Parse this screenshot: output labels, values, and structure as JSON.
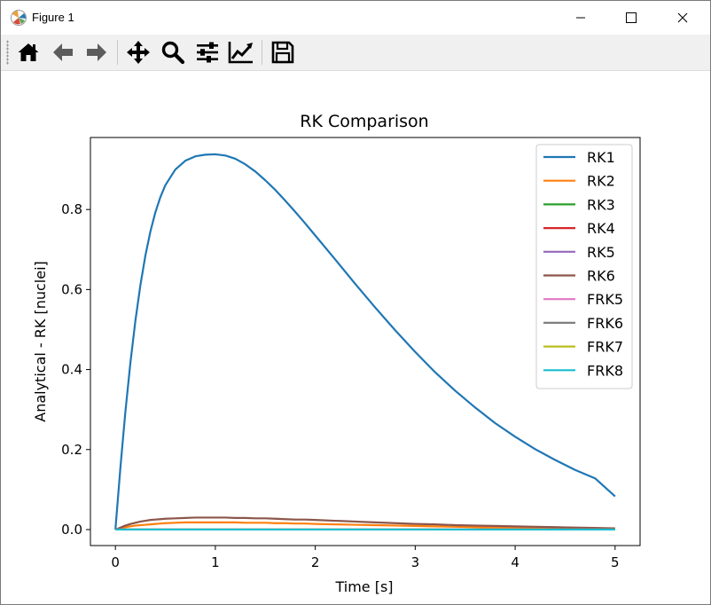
{
  "window": {
    "title": "Figure 1",
    "icons": [
      "matplotlib-icon",
      "minimize-icon",
      "maximize-icon",
      "close-icon"
    ]
  },
  "toolbar": {
    "tools": [
      "home-icon",
      "back-icon",
      "forward-icon",
      "pan-icon",
      "zoom-icon",
      "configure-subplots-icon",
      "edit-axis-icon",
      "save-icon"
    ]
  },
  "chart_data": {
    "type": "line",
    "title": "RK Comparison",
    "xlabel": "Time [s]",
    "ylabel": "Analytical - RK [nuclei]",
    "xlim": [
      -0.25,
      5.25
    ],
    "ylim": [
      -0.04,
      0.98
    ],
    "xticks": [
      0,
      1,
      2,
      3,
      4,
      5
    ],
    "xtick_labels": [
      "0",
      "1",
      "2",
      "3",
      "4",
      "5"
    ],
    "yticks": [
      0.0,
      0.2,
      0.4,
      0.6,
      0.8
    ],
    "ytick_labels": [
      "0.0",
      "0.2",
      "0.4",
      "0.6",
      "0.8"
    ],
    "grid": false,
    "legend_position": "top-right",
    "x": [
      0,
      0.05,
      0.1,
      0.15,
      0.2,
      0.25,
      0.3,
      0.35,
      0.4,
      0.45,
      0.5,
      0.6,
      0.7,
      0.8,
      0.9,
      1.0,
      1.1,
      1.2,
      1.3,
      1.4,
      1.5,
      1.6,
      1.7,
      1.8,
      1.9,
      2.0,
      2.2,
      2.4,
      2.6,
      2.8,
      3.0,
      3.2,
      3.4,
      3.6,
      3.8,
      4.0,
      4.2,
      4.4,
      4.6,
      4.8,
      5.0
    ],
    "series": [
      {
        "name": "RK1",
        "color": "#1f77b4",
        "values": [
          0.0,
          0.155,
          0.295,
          0.417,
          0.522,
          0.611,
          0.685,
          0.745,
          0.793,
          0.831,
          0.861,
          0.9,
          0.922,
          0.933,
          0.937,
          0.938,
          0.935,
          0.927,
          0.913,
          0.895,
          0.873,
          0.849,
          0.822,
          0.794,
          0.765,
          0.735,
          0.675,
          0.614,
          0.555,
          0.498,
          0.444,
          0.393,
          0.347,
          0.305,
          0.266,
          0.232,
          0.201,
          0.174,
          0.149,
          0.128,
          0.083
        ]
      },
      {
        "name": "RK2",
        "color": "#ff7f0e",
        "values": [
          0.0,
          0.003,
          0.006,
          0.008,
          0.01,
          0.011,
          0.012,
          0.013,
          0.014,
          0.015,
          0.016,
          0.017,
          0.018,
          0.018,
          0.018,
          0.018,
          0.018,
          0.018,
          0.017,
          0.017,
          0.017,
          0.016,
          0.016,
          0.015,
          0.015,
          0.014,
          0.013,
          0.012,
          0.011,
          0.01,
          0.009,
          0.008,
          0.007,
          0.006,
          0.005,
          0.005,
          0.004,
          0.004,
          0.003,
          0.003,
          0.002
        ]
      },
      {
        "name": "RK3",
        "color": "#2ca02c",
        "values": [
          0,
          0,
          0,
          0,
          0,
          0,
          0,
          0,
          0,
          0,
          0,
          0,
          0,
          0,
          0,
          0,
          0,
          0,
          0,
          0,
          0,
          0,
          0,
          0,
          0,
          0,
          0,
          0,
          0,
          0,
          0,
          0,
          0,
          0,
          0,
          0,
          0,
          0,
          0,
          0,
          0
        ]
      },
      {
        "name": "RK4",
        "color": "#d62728",
        "values": [
          0,
          0,
          0,
          0,
          0,
          0,
          0,
          0,
          0,
          0,
          0,
          0,
          0,
          0,
          0,
          0,
          0,
          0,
          0,
          0,
          0,
          0,
          0,
          0,
          0,
          0,
          0,
          0,
          0,
          0,
          0,
          0,
          0,
          0,
          0,
          0,
          0,
          0,
          0,
          0,
          0
        ]
      },
      {
        "name": "RK5",
        "color": "#9467bd",
        "values": [
          0,
          0,
          0,
          0,
          0,
          0,
          0,
          0,
          0,
          0,
          0,
          0,
          0,
          0,
          0,
          0,
          0,
          0,
          0,
          0,
          0,
          0,
          0,
          0,
          0,
          0,
          0,
          0,
          0,
          0,
          0,
          0,
          0,
          0,
          0,
          0,
          0,
          0,
          0,
          0,
          0
        ]
      },
      {
        "name": "RK6",
        "color": "#8c564b",
        "values": [
          0.0,
          0.005,
          0.01,
          0.014,
          0.017,
          0.02,
          0.022,
          0.024,
          0.025,
          0.026,
          0.027,
          0.028,
          0.029,
          0.03,
          0.03,
          0.03,
          0.03,
          0.029,
          0.029,
          0.028,
          0.028,
          0.027,
          0.026,
          0.025,
          0.025,
          0.024,
          0.022,
          0.02,
          0.018,
          0.016,
          0.014,
          0.013,
          0.011,
          0.01,
          0.009,
          0.008,
          0.007,
          0.006,
          0.005,
          0.004,
          0.003
        ]
      },
      {
        "name": "FRK5",
        "color": "#e377c2",
        "values": [
          0,
          0,
          0,
          0,
          0,
          0,
          0,
          0,
          0,
          0,
          0,
          0,
          0,
          0,
          0,
          0,
          0,
          0,
          0,
          0,
          0,
          0,
          0,
          0,
          0,
          0,
          0,
          0,
          0,
          0,
          0,
          0,
          0,
          0,
          0,
          0,
          0,
          0,
          0,
          0,
          0
        ]
      },
      {
        "name": "FRK6",
        "color": "#7f7f7f",
        "values": [
          0,
          0,
          0,
          0,
          0,
          0,
          0,
          0,
          0,
          0,
          0,
          0,
          0,
          0,
          0,
          0,
          0,
          0,
          0,
          0,
          0,
          0,
          0,
          0,
          0,
          0,
          0,
          0,
          0,
          0,
          0,
          0,
          0,
          0,
          0,
          0,
          0,
          0,
          0,
          0,
          0
        ]
      },
      {
        "name": "FRK7",
        "color": "#bcbd22",
        "values": [
          0,
          0,
          0,
          0,
          0,
          0,
          0,
          0,
          0,
          0,
          0,
          0,
          0,
          0,
          0,
          0,
          0,
          0,
          0,
          0,
          0,
          0,
          0,
          0,
          0,
          0,
          0,
          0,
          0,
          0,
          0,
          0,
          0,
          0,
          0,
          0,
          0,
          0,
          0,
          0,
          0
        ]
      },
      {
        "name": "FRK8",
        "color": "#17becf",
        "values": [
          0,
          0,
          0,
          0,
          0,
          0,
          0,
          0,
          0,
          0,
          0,
          0,
          0,
          0,
          0,
          0,
          0,
          0,
          0,
          0,
          0,
          0,
          0,
          0,
          0,
          0,
          0,
          0,
          0,
          0,
          0,
          0,
          0,
          0,
          0,
          0,
          0,
          0,
          0,
          0,
          0
        ]
      }
    ]
  }
}
